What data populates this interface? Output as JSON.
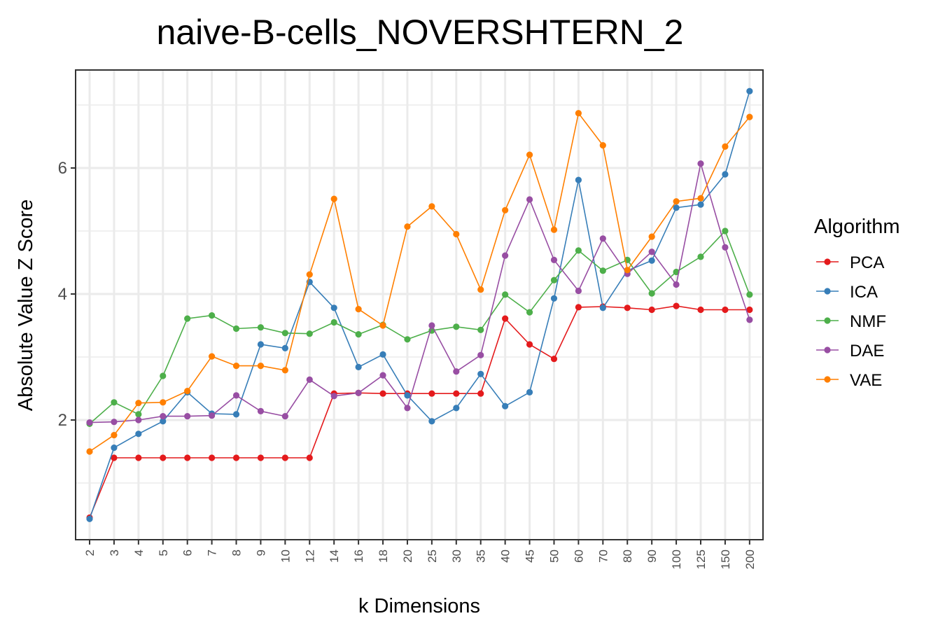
{
  "chart_data": {
    "type": "line",
    "title": "naive-B-cells_NOVERSHTERN_2",
    "xlabel": "k Dimensions",
    "ylabel": "Absolute Value Z Score",
    "categories": [
      "2",
      "3",
      "4",
      "5",
      "6",
      "7",
      "8",
      "9",
      "10",
      "12",
      "14",
      "16",
      "18",
      "20",
      "25",
      "30",
      "35",
      "40",
      "45",
      "50",
      "60",
      "70",
      "80",
      "90",
      "100",
      "125",
      "150",
      "200"
    ],
    "yticks": [
      "2",
      "4",
      "6"
    ],
    "ylim": [
      0.1,
      7.5
    ],
    "grid": true,
    "legend": {
      "title": "Algorithm",
      "position": "right"
    },
    "series": [
      {
        "name": "PCA",
        "color": "#E41A1C",
        "values": [
          0.45,
          1.4,
          1.4,
          1.4,
          1.4,
          1.4,
          1.4,
          1.4,
          1.4,
          1.4,
          2.42,
          2.43,
          2.42,
          2.42,
          2.42,
          2.42,
          2.42,
          3.61,
          3.2,
          2.97,
          3.79,
          3.8,
          3.78,
          3.75,
          3.81,
          3.75,
          3.75,
          3.75
        ]
      },
      {
        "name": "ICA",
        "color": "#377EB8",
        "values": [
          0.43,
          1.56,
          1.78,
          1.98,
          2.44,
          2.1,
          2.09,
          3.2,
          3.14,
          4.19,
          3.78,
          2.84,
          3.04,
          2.39,
          1.98,
          2.19,
          2.73,
          2.22,
          2.44,
          3.93,
          5.81,
          3.78,
          4.37,
          4.53,
          5.37,
          5.42,
          5.9,
          7.22
        ]
      },
      {
        "name": "NMF",
        "color": "#4DAF4A",
        "values": [
          1.94,
          2.28,
          2.09,
          2.7,
          3.61,
          3.66,
          3.45,
          3.47,
          3.38,
          3.37,
          3.55,
          3.36,
          3.51,
          3.28,
          3.42,
          3.48,
          3.43,
          3.99,
          3.71,
          4.22,
          4.69,
          4.37,
          4.54,
          4.01,
          4.35,
          4.59,
          5.0,
          3.99
        ]
      },
      {
        "name": "DAE",
        "color": "#984EA3",
        "values": [
          1.96,
          1.97,
          2.0,
          2.06,
          2.06,
          2.07,
          2.39,
          2.14,
          2.06,
          2.64,
          2.38,
          2.43,
          2.71,
          2.19,
          3.5,
          2.77,
          3.03,
          4.61,
          5.5,
          4.54,
          4.05,
          4.88,
          4.32,
          4.67,
          4.15,
          6.07,
          4.74,
          3.59
        ]
      },
      {
        "name": "VAE",
        "color": "#FF7F00",
        "values": [
          1.5,
          1.76,
          2.27,
          2.28,
          2.46,
          3.01,
          2.86,
          2.86,
          2.79,
          4.31,
          5.51,
          3.76,
          3.5,
          5.07,
          5.39,
          4.95,
          4.07,
          5.33,
          6.21,
          5.02,
          6.87,
          6.36,
          4.38,
          4.91,
          5.47,
          5.52,
          6.34,
          6.81
        ]
      }
    ]
  }
}
